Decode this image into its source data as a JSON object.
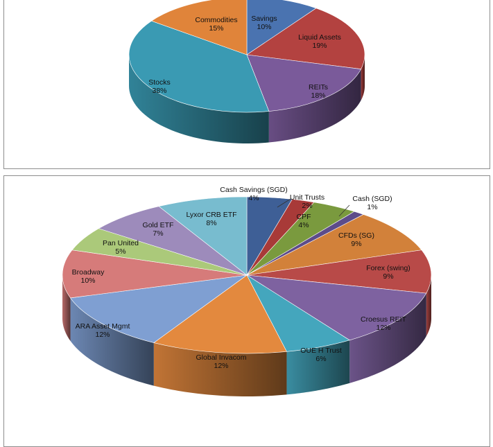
{
  "chart_data": [
    {
      "type": "pie",
      "style": "3d",
      "title": "",
      "slices": [
        {
          "label": "Savings",
          "value": 10,
          "display": "10%",
          "color": "#4a73b0"
        },
        {
          "label": "Liquid Assets",
          "value": 19,
          "display": "19%",
          "color": "#b34240"
        },
        {
          "label": "REITs",
          "value": 18,
          "display": "18%",
          "color": "#7a5a9a"
        },
        {
          "label": "Stocks",
          "value": 38,
          "display": "38%",
          "color": "#3a9ab3"
        },
        {
          "label": "Commodities",
          "value": 15,
          "display": "15%",
          "color": "#e0843a"
        }
      ]
    },
    {
      "type": "pie",
      "style": "3d",
      "title": "",
      "slices": [
        {
          "label": "Cash Savings (SGD)",
          "value": 4,
          "display": "4%",
          "color": "#3e5f96"
        },
        {
          "label": "Unit Trusts",
          "value": 2,
          "display": "2%",
          "color": "#a83a38"
        },
        {
          "label": "CPF",
          "value": 4,
          "display": "4%",
          "color": "#7a9a3e"
        },
        {
          "label": "Cash (SGD)",
          "value": 1,
          "display": "1%",
          "color": "#5d4c8a"
        },
        {
          "label": "CFDs (SG)",
          "value": 9,
          "display": "9%",
          "color": "#d2813a"
        },
        {
          "label": "Forex (swing)",
          "value": 9,
          "display": "9%",
          "color": "#b84a48"
        },
        {
          "label": "Croesus REIT",
          "value": 12,
          "display": "12%",
          "color": "#7e62a0"
        },
        {
          "label": "OUE H Trust",
          "value": 6,
          "display": "6%",
          "color": "#44a6bd"
        },
        {
          "label": "Global Invacom",
          "value": 12,
          "display": "12%",
          "color": "#e3893e"
        },
        {
          "label": "ARA Asset Mgmt",
          "value": 12,
          "display": "12%",
          "color": "#7f9fd2"
        },
        {
          "label": "Broadway",
          "value": 10,
          "display": "10%",
          "color": "#d67b7a"
        },
        {
          "label": "Pan United",
          "value": 5,
          "display": "5%",
          "color": "#abc97a"
        },
        {
          "label": "Gold ETF",
          "value": 7,
          "display": "7%",
          "color": "#9d8bbb"
        },
        {
          "label": "Lyxor CRB ETF",
          "value": 8,
          "display": "8%",
          "color": "#78bccf"
        }
      ]
    }
  ]
}
